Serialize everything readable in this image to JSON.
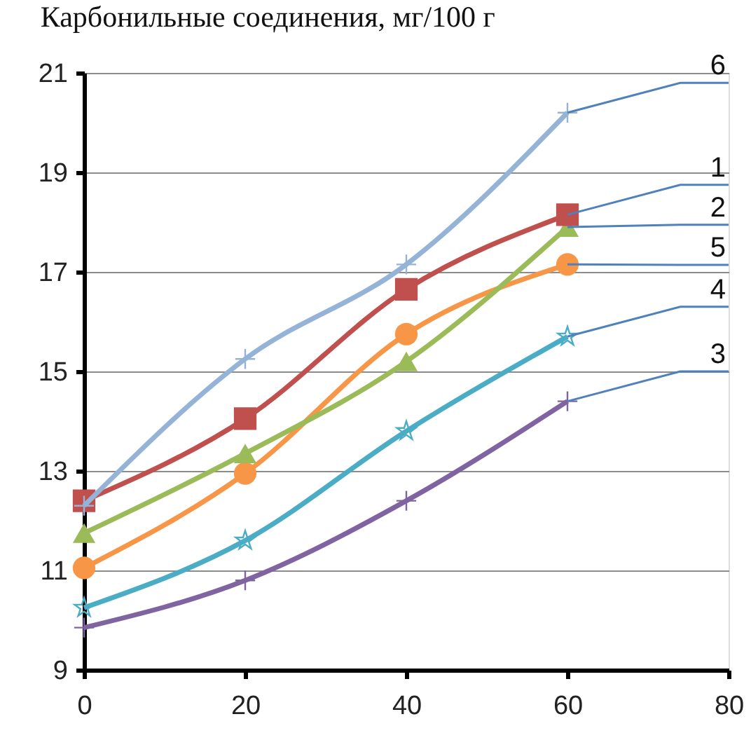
{
  "chart_data": {
    "type": "line",
    "title": "Карбонильные соединения, мг/100 г",
    "x": [
      0,
      20,
      40,
      60
    ],
    "series": [
      {
        "name": "6",
        "color": "#95b3d7",
        "marker": "cross",
        "values": [
          12.3,
          15.25,
          17.15,
          20.2
        ]
      },
      {
        "name": "1",
        "color": "#c0504d",
        "marker": "square",
        "values": [
          12.4,
          14.05,
          16.65,
          18.15
        ]
      },
      {
        "name": "2",
        "color": "#9bbb59",
        "marker": "triangle",
        "values": [
          11.75,
          13.35,
          15.2,
          17.9
        ]
      },
      {
        "name": "5",
        "color": "#f79646",
        "marker": "circle",
        "values": [
          11.05,
          12.95,
          15.75,
          17.15
        ]
      },
      {
        "name": "4",
        "color": "#4bacc6",
        "marker": "star",
        "values": [
          10.25,
          11.6,
          13.8,
          15.7
        ]
      },
      {
        "name": "3",
        "color": "#8064a2",
        "marker": "cross",
        "values": [
          9.85,
          10.8,
          12.4,
          14.4
        ]
      }
    ],
    "xlim": [
      0,
      80
    ],
    "ylim": [
      9,
      21
    ],
    "xticks": [
      0,
      20,
      40,
      60,
      80
    ],
    "yticks": [
      9,
      11,
      13,
      15,
      17,
      19,
      21
    ],
    "grid": "y"
  }
}
